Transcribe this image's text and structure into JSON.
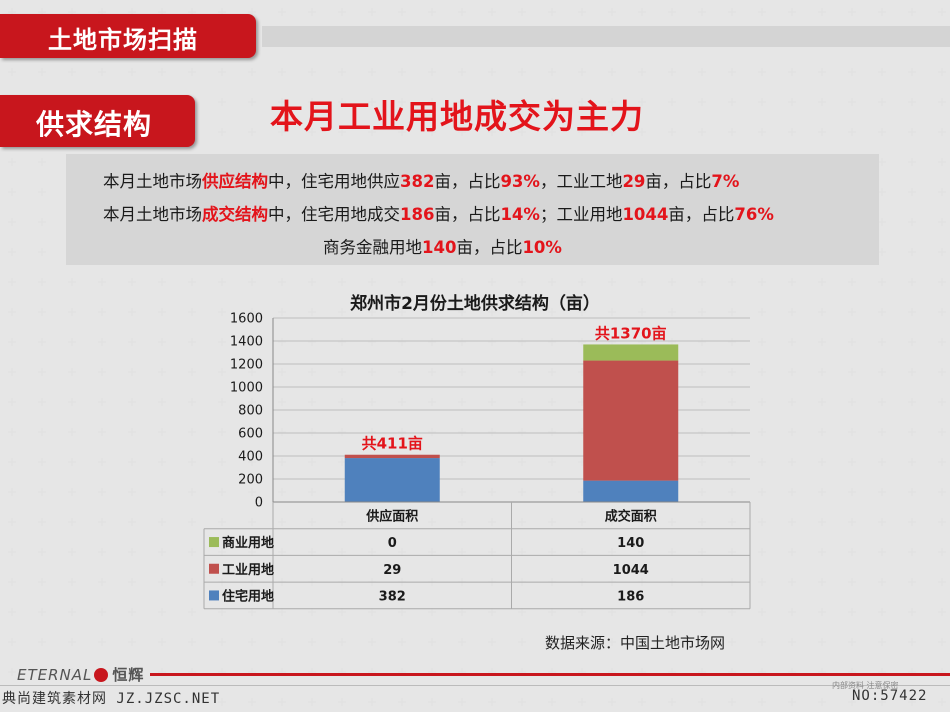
{
  "header": {
    "tab_label": "土地市场扫描"
  },
  "section": {
    "tab_label": "供求结构",
    "headline": "本月工业用地成交为主力"
  },
  "summary": {
    "line1": [
      {
        "t": "本月土地市场",
        "hl": false
      },
      {
        "t": "供应结构",
        "hl": true
      },
      {
        "t": "中，住宅用地供应",
        "hl": false
      },
      {
        "t": "382",
        "hl": true
      },
      {
        "t": "亩，占比",
        "hl": false
      },
      {
        "t": "93%",
        "hl": true
      },
      {
        "t": "，工业工地",
        "hl": false
      },
      {
        "t": "29",
        "hl": true
      },
      {
        "t": "亩，占比",
        "hl": false
      },
      {
        "t": "7%",
        "hl": true
      }
    ],
    "line2": [
      {
        "t": "本月土地市场",
        "hl": false
      },
      {
        "t": "成交结构",
        "hl": true
      },
      {
        "t": "中，住宅用地成交",
        "hl": false
      },
      {
        "t": "186",
        "hl": true
      },
      {
        "t": "亩，占比",
        "hl": false
      },
      {
        "t": "14%",
        "hl": true
      },
      {
        "t": "；工业用地",
        "hl": false
      },
      {
        "t": "1044",
        "hl": true
      },
      {
        "t": "亩，占比",
        "hl": false
      },
      {
        "t": "76%",
        "hl": true
      }
    ],
    "line3": [
      {
        "t": "商务金融用地",
        "hl": false
      },
      {
        "t": "140",
        "hl": true
      },
      {
        "t": "亩，占比",
        "hl": false
      },
      {
        "t": "10%",
        "hl": true
      }
    ]
  },
  "chart_data": {
    "type": "bar",
    "stacked": true,
    "title": "郑州市2月份土地供求结构（亩）",
    "categories": [
      "供应面积",
      "成交面积"
    ],
    "series": [
      {
        "name": "住宅用地",
        "values": [
          382,
          186
        ],
        "color": "#4f81bd"
      },
      {
        "name": "工业用地",
        "values": [
          29,
          1044
        ],
        "color": "#c0504d"
      },
      {
        "name": "商业用地",
        "values": [
          0,
          140
        ],
        "color": "#9bbb59"
      }
    ],
    "totals_labels": [
      "共411亩",
      "共1370亩"
    ],
    "y_ticks": [
      "0",
      "200",
      "400",
      "600",
      "800",
      "1000",
      "1200",
      "1400",
      "1600"
    ],
    "ylim": [
      0,
      1600
    ],
    "grid": true,
    "legend": "data-table",
    "table_rows_order": [
      "商业用地",
      "工业用地",
      "住宅用地"
    ]
  },
  "source_note": "数据来源：中国土地市场网",
  "footer": {
    "logo_text": "ETERNAL",
    "logo_cn": "恒辉",
    "small_right": "内部资料  注意保密",
    "watermark_left": "典尚建筑素材网 JZ.JZSC.NET",
    "watermark_right": "NO:57422"
  }
}
